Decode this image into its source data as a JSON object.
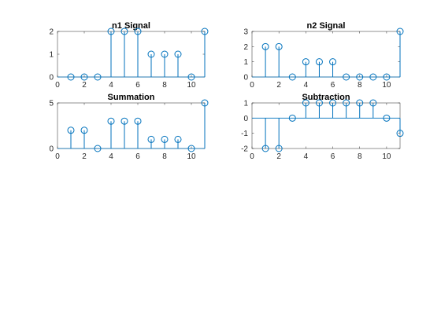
{
  "figure": {
    "background": "#ffffff",
    "series_color": "#0072BD",
    "axis_color": "#262626"
  },
  "chart_data": [
    {
      "type": "stem",
      "title": "n1 Signal",
      "xlabel": "",
      "ylabel": "",
      "xlim": [
        0,
        11
      ],
      "ylim": [
        0,
        2
      ],
      "xticks": [
        0,
        2,
        4,
        6,
        8,
        10
      ],
      "yticks": [
        0,
        1,
        2
      ],
      "grid": false,
      "x": [
        1,
        2,
        3,
        4,
        5,
        6,
        7,
        8,
        9,
        10,
        11
      ],
      "values": [
        0,
        0,
        0,
        2,
        2,
        2,
        1,
        1,
        1,
        0,
        2
      ]
    },
    {
      "type": "stem",
      "title": "n2 Signal",
      "xlabel": "",
      "ylabel": "",
      "xlim": [
        0,
        11
      ],
      "ylim": [
        0,
        3
      ],
      "xticks": [
        0,
        2,
        4,
        6,
        8,
        10
      ],
      "yticks": [
        0,
        1,
        2,
        3
      ],
      "grid": false,
      "x": [
        1,
        2,
        3,
        4,
        5,
        6,
        7,
        8,
        9,
        10,
        11
      ],
      "values": [
        2,
        2,
        0,
        1,
        1,
        1,
        0,
        0,
        0,
        0,
        3
      ]
    },
    {
      "type": "stem",
      "title": "Summation",
      "xlabel": "",
      "ylabel": "",
      "xlim": [
        0,
        11
      ],
      "ylim": [
        0,
        5
      ],
      "xticks": [
        0,
        2,
        4,
        6,
        8,
        10
      ],
      "yticks": [
        0,
        5
      ],
      "grid": false,
      "x": [
        1,
        2,
        3,
        4,
        5,
        6,
        7,
        8,
        9,
        10,
        11
      ],
      "values": [
        2,
        2,
        0,
        3,
        3,
        3,
        1,
        1,
        1,
        0,
        5
      ]
    },
    {
      "type": "stem",
      "title": "Subtraction",
      "xlabel": "",
      "ylabel": "",
      "xlim": [
        0,
        11
      ],
      "ylim": [
        -2,
        1
      ],
      "xticks": [
        0,
        2,
        4,
        6,
        8,
        10
      ],
      "yticks": [
        -2,
        -1,
        0,
        1
      ],
      "grid": false,
      "x": [
        1,
        2,
        3,
        4,
        5,
        6,
        7,
        8,
        9,
        10,
        11
      ],
      "values": [
        -2,
        -2,
        0,
        1,
        1,
        1,
        1,
        1,
        1,
        0,
        -1
      ]
    }
  ]
}
